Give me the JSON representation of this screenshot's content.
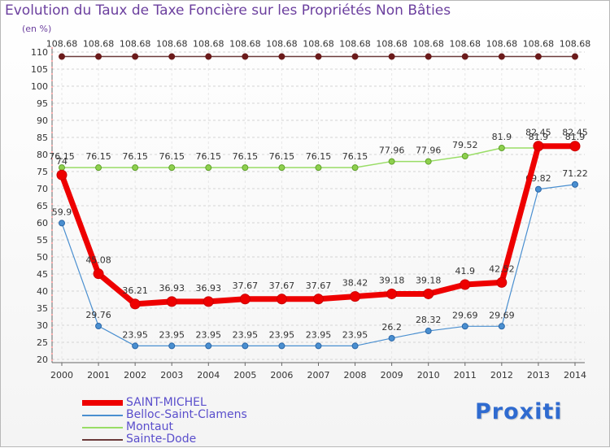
{
  "chart_data": {
    "type": "line",
    "title": "Evolution du Taux de Taxe Foncière sur les Propriétés Non Bâties",
    "ylabel": "(en %)",
    "xlabel": "",
    "ylim": [
      20,
      110
    ],
    "yticks": [
      20,
      25,
      30,
      35,
      40,
      45,
      50,
      55,
      60,
      65,
      70,
      75,
      80,
      85,
      90,
      95,
      100,
      105,
      110
    ],
    "categories": [
      "2000",
      "2001",
      "2002",
      "2003",
      "2004",
      "2005",
      "2006",
      "2007",
      "2008",
      "2009",
      "2010",
      "2011",
      "2012",
      "2013",
      "2014"
    ],
    "grid": "horizontal dashed",
    "legend_position": "bottom-left",
    "series": [
      {
        "name": "Sainte-Dode",
        "color": "#6b3a3a",
        "values": [
          108.68,
          108.68,
          108.68,
          108.68,
          108.68,
          108.68,
          108.68,
          108.68,
          108.68,
          108.68,
          108.68,
          108.68,
          108.68,
          108.68,
          108.68
        ],
        "labels": [
          "108.68",
          "108.68",
          "108.68",
          "108.68",
          "108.68",
          "108.68",
          "108.68",
          "108.68",
          "108.68",
          "108.68",
          "108.68",
          "108.68",
          "108.68",
          "108.68",
          "108.68"
        ]
      },
      {
        "name": "Montaut",
        "color": "#99dd66",
        "values": [
          76.15,
          76.15,
          76.15,
          76.15,
          76.15,
          76.15,
          76.15,
          76.15,
          76.15,
          77.96,
          77.96,
          79.52,
          81.9,
          81.9,
          81.9
        ],
        "labels": [
          "76.15",
          "76.15",
          "76.15",
          "76.15",
          "76.15",
          "76.15",
          "76.15",
          "76.15",
          "76.15",
          "77.96",
          "77.96",
          "79.52",
          "81.9",
          "81.9",
          "81.9"
        ]
      },
      {
        "name": "Belloc-Saint-Clamens",
        "color": "#4a8fd0",
        "values": [
          59.9,
          29.76,
          23.95,
          23.95,
          23.95,
          23.95,
          23.95,
          23.95,
          23.95,
          26.2,
          28.32,
          29.69,
          29.69,
          69.82,
          71.22
        ],
        "labels": [
          "59.9",
          "29.76",
          "23.95",
          "23.95",
          "23.95",
          "23.95",
          "23.95",
          "23.95",
          "23.95",
          "26.2",
          "28.32",
          "29.69",
          "29.69",
          "69.82",
          "71.22"
        ]
      },
      {
        "name": "SAINT-MICHEL",
        "color": "#ee0000",
        "values": [
          74,
          45.08,
          36.21,
          36.93,
          36.93,
          37.67,
          37.67,
          37.67,
          38.42,
          39.18,
          39.18,
          41.9,
          42.52,
          82.45,
          82.45
        ],
        "labels": [
          "74",
          "45.08",
          "36.21",
          "36.93",
          "36.93",
          "37.67",
          "37.67",
          "37.67",
          "38.42",
          "39.18",
          "39.18",
          "41.9",
          "42.52",
          "82.45",
          "82.45"
        ]
      }
    ],
    "legend_order": [
      "SAINT-MICHEL",
      "Belloc-Saint-Clamens",
      "Montaut",
      "Sainte-Dode"
    ]
  },
  "brand": {
    "text": "Proxiti"
  }
}
